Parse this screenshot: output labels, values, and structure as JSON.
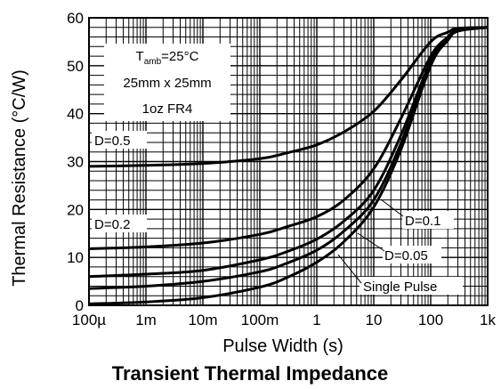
{
  "chart_data": {
    "type": "line",
    "title": "Transient Thermal Impedance",
    "xlabel": "Pulse Width (s)",
    "ylabel": "Thermal Resistance (°C/W)",
    "x_scale": "log",
    "xlim": [
      0.0001,
      1000
    ],
    "ylim": [
      0,
      60
    ],
    "x_ticks": [
      {
        "value": 0.0001,
        "label": "100µ"
      },
      {
        "value": 0.001,
        "label": "1m"
      },
      {
        "value": 0.01,
        "label": "10m"
      },
      {
        "value": 0.1,
        "label": "100m"
      },
      {
        "value": 1,
        "label": "1"
      },
      {
        "value": 10,
        "label": "10"
      },
      {
        "value": 100,
        "label": "100"
      },
      {
        "value": 1000,
        "label": "1k"
      }
    ],
    "y_ticks": [
      0,
      10,
      20,
      30,
      40,
      50,
      60
    ],
    "grid": true,
    "annotation": {
      "line1_main": "T",
      "line1_sub": "amb",
      "line1_rest": "=25°C",
      "line2": "25mm x 25mm",
      "line3": "1oz FR4"
    },
    "series": [
      {
        "name": "D=0.5",
        "x": [
          0.0001,
          0.001,
          0.01,
          0.1,
          0.3,
          1,
          3,
          10,
          30,
          100,
          200,
          300,
          1000
        ],
        "y": [
          29,
          29.2,
          29.6,
          30.6,
          31.8,
          33.5,
          36.2,
          40.5,
          47,
          55,
          57,
          57.8,
          58
        ]
      },
      {
        "name": "D=0.2",
        "x": [
          0.0001,
          0.001,
          0.01,
          0.1,
          0.3,
          1,
          3,
          10,
          30,
          100,
          200,
          300,
          1000
        ],
        "y": [
          11.8,
          12.2,
          13,
          14.8,
          16.4,
          18.5,
          22,
          28.5,
          39,
          52,
          56,
          57.5,
          58
        ]
      },
      {
        "name": "D=0.1",
        "x": [
          0.0001,
          0.001,
          0.01,
          0.1,
          0.3,
          1,
          3,
          10,
          30,
          100,
          200,
          300,
          1000
        ],
        "y": [
          6,
          6.5,
          7.3,
          9.5,
          11.2,
          13.8,
          17.6,
          24,
          35.5,
          51,
          55.8,
          57.4,
          58
        ]
      },
      {
        "name": "D=0.05",
        "x": [
          0.0001,
          0.001,
          0.01,
          0.1,
          0.3,
          1,
          3,
          10,
          30,
          100,
          200,
          300,
          1000
        ],
        "y": [
          3.5,
          4,
          5,
          7,
          8.8,
          11.5,
          15.5,
          22,
          33.8,
          50.5,
          55.5,
          57.3,
          58
        ]
      },
      {
        "name": "Single Pulse",
        "x": [
          0.0001,
          0.001,
          0.01,
          0.1,
          0.3,
          1,
          3,
          10,
          30,
          100,
          200,
          300,
          1000
        ],
        "y": [
          0.3,
          0.7,
          1.6,
          3.8,
          5.8,
          9,
          13.3,
          20.5,
          32.5,
          50,
          55.3,
          57.2,
          58
        ]
      }
    ]
  }
}
